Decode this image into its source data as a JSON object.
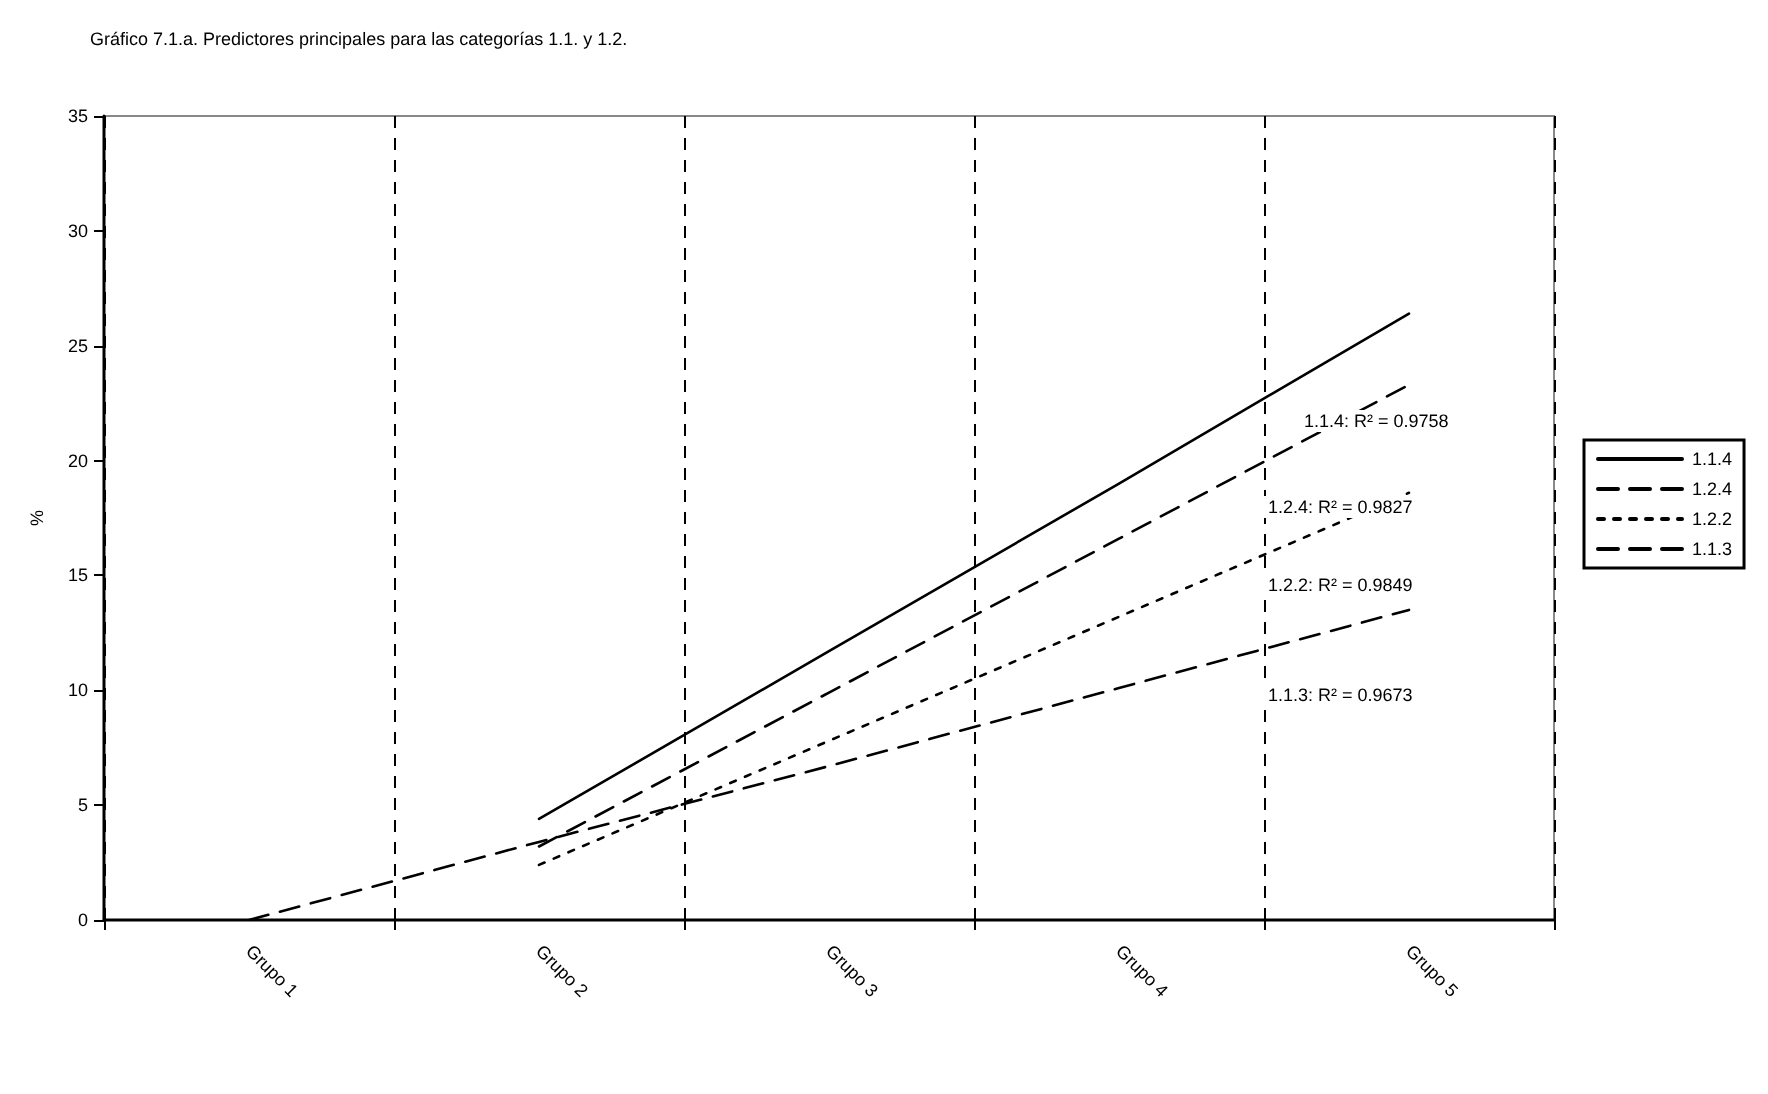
{
  "chart_data": {
    "type": "line",
    "title": "Gráfico 7.1.a. Predictores principales para las categorías 1.1. y 1.2.",
    "ylabel": "%",
    "categories": [
      "Grupo 1",
      "Grupo 2",
      "Grupo 3",
      "Grupo 4",
      "Grupo 5"
    ],
    "ylim": [
      0,
      35
    ],
    "yticks": [
      0,
      5,
      10,
      15,
      20,
      25,
      30,
      35
    ],
    "series": [
      {
        "name": "1.1.4",
        "color": "#000000",
        "line_style": "solid",
        "values": [
          null,
          4.4,
          11.7,
          19.0,
          26.4
        ]
      },
      {
        "name": "1.2.4",
        "color": "#000000",
        "line_style": "dashed",
        "values": [
          null,
          3.2,
          9.9,
          16.6,
          23.3
        ]
      },
      {
        "name": "1.2.2",
        "color": "#000000",
        "line_style": "dotted",
        "values": [
          null,
          2.4,
          7.8,
          13.2,
          18.6
        ]
      },
      {
        "name": "1.1.3",
        "color": "#000000",
        "line_style": "dashed",
        "values": [
          0,
          3.4,
          6.7,
          10.1,
          13.5
        ]
      }
    ],
    "annotations": [
      "1.1.4: R² = 0.9758",
      "1.2.4: R² = 0.9827",
      "1.2.2: R² = 0.9849",
      "1.1.3: R² = 0.9673"
    ],
    "legend": "right",
    "grid": "x",
    "marker": "none"
  }
}
